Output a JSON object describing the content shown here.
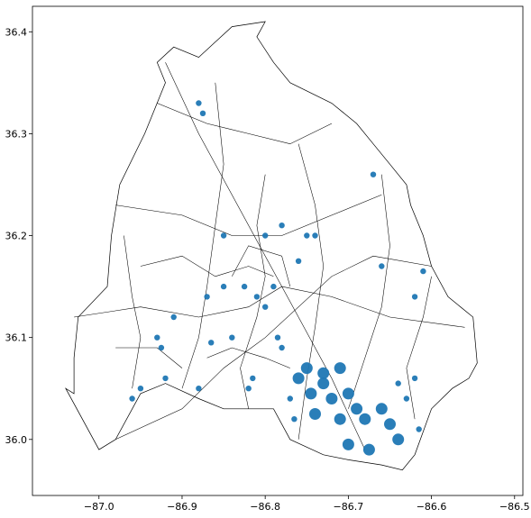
{
  "chart_data": {
    "type": "map",
    "title": "",
    "xlabel": "",
    "ylabel": "",
    "xlim": [
      -87.08,
      -86.49
    ],
    "ylim": [
      35.945,
      36.425
    ],
    "x_ticks": [
      -87.0,
      -86.9,
      -86.8,
      -86.7,
      -86.6,
      -86.5
    ],
    "x_tick_labels": [
      "−87.0",
      "−86.9",
      "−86.8",
      "−86.7",
      "−86.6",
      "−86.5"
    ],
    "y_ticks": [
      36.0,
      36.1,
      36.2,
      36.3,
      36.4
    ],
    "y_tick_labels": [
      "36.0",
      "36.1",
      "36.2",
      "36.3",
      "36.4"
    ],
    "grid": false,
    "layers": [
      {
        "name": "",
        "kind": "polygon-outlines",
        "color": "#000000",
        "outline_lonlat": [
          [
            -87.03,
            36.045
          ],
          [
            -87.04,
            36.05
          ],
          [
            -87.0,
            35.99
          ],
          [
            -86.98,
            36.0
          ],
          [
            -86.95,
            36.045
          ],
          [
            -86.92,
            36.055
          ],
          [
            -86.88,
            36.04
          ],
          [
            -86.85,
            36.03
          ],
          [
            -86.82,
            36.03
          ],
          [
            -86.79,
            36.03
          ],
          [
            -86.77,
            36.0
          ],
          [
            -86.73,
            35.985
          ],
          [
            -86.7,
            35.98
          ],
          [
            -86.66,
            35.975
          ],
          [
            -86.635,
            35.97
          ],
          [
            -86.62,
            35.985
          ],
          [
            -86.6,
            36.03
          ],
          [
            -86.575,
            36.05
          ],
          [
            -86.555,
            36.06
          ],
          [
            -86.545,
            36.075
          ],
          [
            -86.55,
            36.12
          ],
          [
            -86.565,
            36.13
          ],
          [
            -86.58,
            36.14
          ],
          [
            -86.6,
            36.17
          ],
          [
            -86.61,
            36.2
          ],
          [
            -86.625,
            36.23
          ],
          [
            -86.63,
            36.25
          ],
          [
            -86.65,
            36.27
          ],
          [
            -86.67,
            36.29
          ],
          [
            -86.69,
            36.31
          ],
          [
            -86.72,
            36.33
          ],
          [
            -86.77,
            36.35
          ],
          [
            -86.79,
            36.37
          ],
          [
            -86.81,
            36.395
          ],
          [
            -86.8,
            36.41
          ],
          [
            -86.84,
            36.405
          ],
          [
            -86.86,
            36.39
          ],
          [
            -86.88,
            36.375
          ],
          [
            -86.91,
            36.385
          ],
          [
            -86.93,
            36.37
          ],
          [
            -86.92,
            36.35
          ],
          [
            -86.945,
            36.3
          ],
          [
            -86.975,
            36.25
          ],
          [
            -86.985,
            36.2
          ],
          [
            -86.99,
            36.15
          ],
          [
            -87.025,
            36.12
          ],
          [
            -87.03,
            36.08
          ],
          [
            -87.03,
            36.045
          ]
        ],
        "internal_lines_lonlat": [
          [
            [
              -86.98,
              36.0
            ],
            [
              -86.9,
              36.03
            ],
            [
              -86.85,
              36.07
            ],
            [
              -86.8,
              36.1
            ],
            [
              -86.76,
              36.13
            ],
            [
              -86.72,
              36.16
            ],
            [
              -86.67,
              36.18
            ],
            [
              -86.6,
              36.17
            ]
          ],
          [
            [
              -86.92,
              36.37
            ],
            [
              -86.88,
              36.3
            ],
            [
              -86.84,
              36.24
            ],
            [
              -86.8,
              36.18
            ],
            [
              -86.76,
              36.12
            ],
            [
              -86.72,
              36.06
            ],
            [
              -86.68,
              35.99
            ]
          ],
          [
            [
              -87.03,
              36.12
            ],
            [
              -86.95,
              36.13
            ],
            [
              -86.88,
              36.12
            ],
            [
              -86.82,
              36.13
            ],
            [
              -86.78,
              36.15
            ],
            [
              -86.72,
              36.14
            ],
            [
              -86.65,
              36.12
            ],
            [
              -86.56,
              36.11
            ]
          ],
          [
            [
              -86.98,
              36.23
            ],
            [
              -86.9,
              36.22
            ],
            [
              -86.84,
              36.2
            ],
            [
              -86.78,
              36.2
            ],
            [
              -86.72,
              36.22
            ],
            [
              -86.66,
              36.24
            ]
          ],
          [
            [
              -86.93,
              36.33
            ],
            [
              -86.87,
              36.31
            ],
            [
              -86.82,
              36.3
            ],
            [
              -86.77,
              36.29
            ],
            [
              -86.72,
              36.31
            ]
          ],
          [
            [
              -86.95,
              36.17
            ],
            [
              -86.9,
              36.18
            ],
            [
              -86.86,
              36.16
            ],
            [
              -86.82,
              36.17
            ],
            [
              -86.79,
              36.16
            ]
          ],
          [
            [
              -86.87,
              36.08
            ],
            [
              -86.84,
              36.09
            ],
            [
              -86.8,
              36.08
            ],
            [
              -86.77,
              36.07
            ]
          ],
          [
            [
              -86.9,
              36.05
            ],
            [
              -86.88,
              36.1
            ],
            [
              -86.87,
              36.15
            ],
            [
              -86.86,
              36.21
            ],
            [
              -86.85,
              36.27
            ],
            [
              -86.86,
              36.35
            ]
          ],
          [
            [
              -86.7,
              36.03
            ],
            [
              -86.68,
              36.08
            ],
            [
              -86.66,
              36.13
            ],
            [
              -86.65,
              36.19
            ],
            [
              -86.66,
              36.26
            ]
          ],
          [
            [
              -86.82,
              36.03
            ],
            [
              -86.83,
              36.07
            ],
            [
              -86.81,
              36.12
            ],
            [
              -86.8,
              36.16
            ],
            [
              -86.81,
              36.21
            ],
            [
              -86.8,
              36.26
            ]
          ],
          [
            [
              -86.76,
              36.0
            ],
            [
              -86.75,
              36.06
            ],
            [
              -86.74,
              36.11
            ],
            [
              -86.73,
              36.17
            ],
            [
              -86.74,
              36.23
            ],
            [
              -86.76,
              36.29
            ]
          ],
          [
            [
              -86.62,
              36.02
            ],
            [
              -86.63,
              36.07
            ],
            [
              -86.61,
              36.12
            ],
            [
              -86.6,
              36.16
            ]
          ],
          [
            [
              -86.96,
              36.05
            ],
            [
              -86.95,
              36.1
            ],
            [
              -86.96,
              36.14
            ],
            [
              -86.97,
              36.2
            ]
          ],
          [
            [
              -86.98,
              36.09
            ],
            [
              -86.93,
              36.09
            ],
            [
              -86.9,
              36.07
            ]
          ],
          [
            [
              -86.84,
              36.16
            ],
            [
              -86.82,
              36.19
            ],
            [
              -86.78,
              36.18
            ],
            [
              -86.77,
              36.15
            ]
          ]
        ]
      },
      {
        "name": "",
        "kind": "point-clusters",
        "color": "#1f77b4",
        "cluster_lonlat": [
          [
            -86.75,
            36.07
          ],
          [
            -86.73,
            36.065
          ],
          [
            -86.71,
            36.07
          ],
          [
            -86.745,
            36.045
          ],
          [
            -86.72,
            36.04
          ],
          [
            -86.7,
            36.045
          ],
          [
            -86.74,
            36.025
          ],
          [
            -86.71,
            36.02
          ],
          [
            -86.69,
            36.03
          ],
          [
            -86.73,
            36.055
          ],
          [
            -86.76,
            36.06
          ],
          [
            -86.68,
            36.02
          ],
          [
            -86.66,
            36.03
          ],
          [
            -86.65,
            36.015
          ],
          [
            -86.64,
            36.0
          ],
          [
            -86.7,
            35.995
          ],
          [
            -86.675,
            35.99
          ],
          [
            -86.77,
            36.04
          ],
          [
            -86.765,
            36.02
          ],
          [
            -86.96,
            36.04
          ],
          [
            -86.95,
            36.05
          ],
          [
            -86.92,
            36.06
          ],
          [
            -86.93,
            36.1
          ],
          [
            -86.925,
            36.09
          ],
          [
            -86.91,
            36.12
          ],
          [
            -86.865,
            36.095
          ],
          [
            -86.82,
            36.05
          ],
          [
            -86.815,
            36.06
          ],
          [
            -86.78,
            36.09
          ],
          [
            -86.785,
            36.1
          ],
          [
            -86.8,
            36.13
          ],
          [
            -86.81,
            36.14
          ],
          [
            -86.825,
            36.15
          ],
          [
            -86.79,
            36.15
          ],
          [
            -86.85,
            36.15
          ],
          [
            -86.87,
            36.14
          ],
          [
            -86.76,
            36.175
          ],
          [
            -86.75,
            36.2
          ],
          [
            -86.78,
            36.21
          ],
          [
            -86.8,
            36.2
          ],
          [
            -86.61,
            36.165
          ],
          [
            -86.62,
            36.14
          ],
          [
            -86.66,
            36.17
          ],
          [
            -86.62,
            36.06
          ],
          [
            -86.63,
            36.04
          ],
          [
            -86.64,
            36.055
          ],
          [
            -86.615,
            36.01
          ],
          [
            -86.67,
            36.26
          ],
          [
            -86.875,
            36.32
          ],
          [
            -86.88,
            36.33
          ],
          [
            -86.85,
            36.2
          ],
          [
            -86.74,
            36.2
          ],
          [
            -86.88,
            36.05
          ],
          [
            -86.84,
            36.1
          ]
        ]
      }
    ]
  }
}
